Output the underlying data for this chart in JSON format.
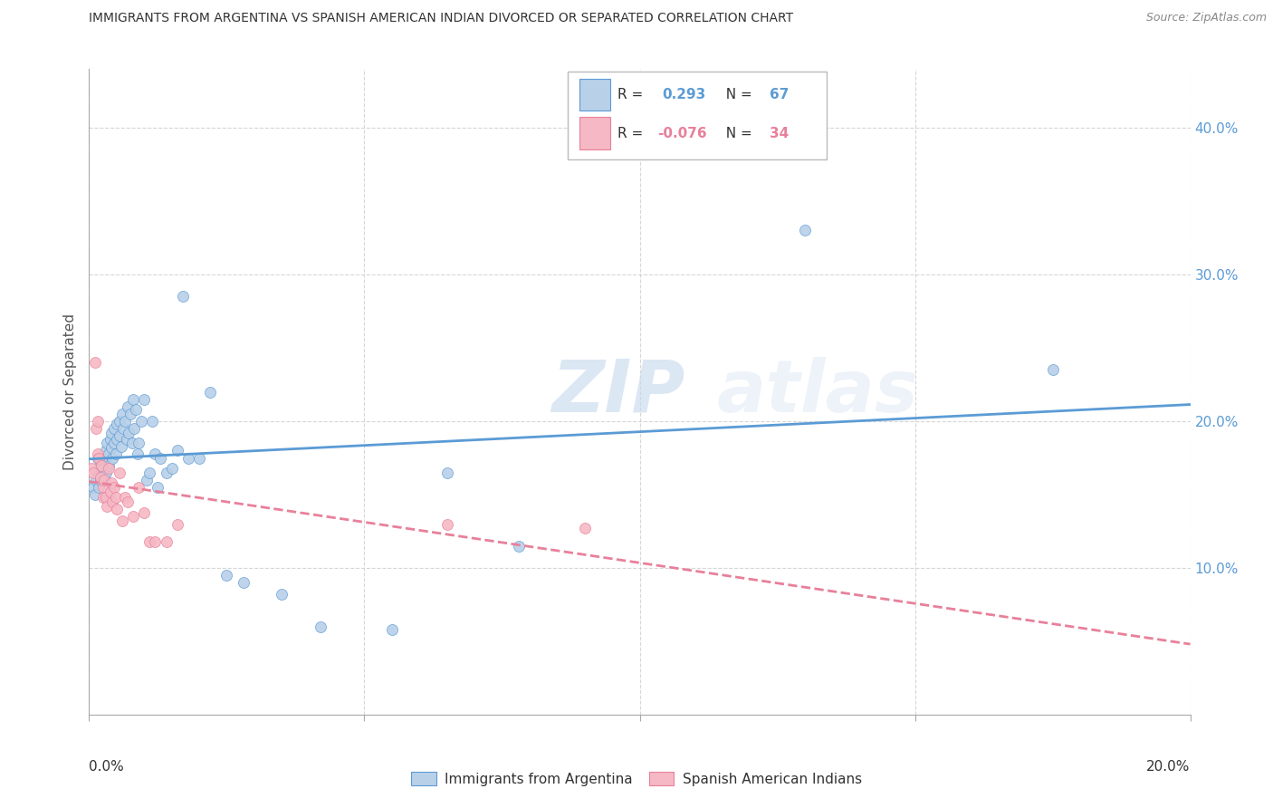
{
  "title": "IMMIGRANTS FROM ARGENTINA VS SPANISH AMERICAN INDIAN DIVORCED OR SEPARATED CORRELATION CHART",
  "source": "Source: ZipAtlas.com",
  "ylabel": "Divorced or Separated",
  "legend1_R": "0.293",
  "legend1_N": "67",
  "legend2_R": "-0.076",
  "legend2_N": "34",
  "legend1_label": "Immigrants from Argentina",
  "legend2_label": "Spanish American Indians",
  "blue_color": "#b8d0e8",
  "pink_color": "#f5b8c4",
  "blue_line_color": "#5b9bd5",
  "pink_line_color": "#e8809a",
  "watermark_zip": "ZIP",
  "watermark_atlas": "atlas",
  "blue_scatter_x": [
    0.0008,
    0.001,
    0.0012,
    0.0015,
    0.0015,
    0.0018,
    0.002,
    0.002,
    0.0022,
    0.0025,
    0.0025,
    0.0028,
    0.003,
    0.003,
    0.003,
    0.0033,
    0.0035,
    0.0035,
    0.0038,
    0.004,
    0.004,
    0.0042,
    0.0045,
    0.0045,
    0.0048,
    0.005,
    0.005,
    0.0055,
    0.0055,
    0.0058,
    0.006,
    0.0062,
    0.0065,
    0.0068,
    0.007,
    0.0072,
    0.0075,
    0.0078,
    0.008,
    0.0082,
    0.0085,
    0.0088,
    0.009,
    0.0095,
    0.01,
    0.0105,
    0.011,
    0.0115,
    0.012,
    0.0125,
    0.013,
    0.014,
    0.015,
    0.016,
    0.017,
    0.018,
    0.02,
    0.022,
    0.025,
    0.028,
    0.035,
    0.042,
    0.055,
    0.065,
    0.078,
    0.13,
    0.175
  ],
  "blue_scatter_y": [
    0.155,
    0.15,
    0.16,
    0.175,
    0.165,
    0.155,
    0.17,
    0.16,
    0.165,
    0.175,
    0.168,
    0.162,
    0.18,
    0.172,
    0.165,
    0.185,
    0.178,
    0.17,
    0.188,
    0.192,
    0.182,
    0.175,
    0.195,
    0.185,
    0.178,
    0.198,
    0.188,
    0.2,
    0.19,
    0.183,
    0.205,
    0.195,
    0.2,
    0.188,
    0.21,
    0.192,
    0.205,
    0.185,
    0.215,
    0.195,
    0.208,
    0.178,
    0.185,
    0.2,
    0.215,
    0.16,
    0.165,
    0.2,
    0.178,
    0.155,
    0.175,
    0.165,
    0.168,
    0.18,
    0.285,
    0.175,
    0.175,
    0.22,
    0.095,
    0.09,
    0.082,
    0.06,
    0.058,
    0.165,
    0.115,
    0.33,
    0.235
  ],
  "pink_scatter_x": [
    0.0005,
    0.0008,
    0.001,
    0.0012,
    0.0015,
    0.0015,
    0.0018,
    0.002,
    0.0022,
    0.0025,
    0.0025,
    0.0028,
    0.003,
    0.0032,
    0.0035,
    0.0038,
    0.004,
    0.0042,
    0.0045,
    0.0048,
    0.005,
    0.0055,
    0.006,
    0.0065,
    0.007,
    0.008,
    0.009,
    0.01,
    0.011,
    0.012,
    0.014,
    0.016,
    0.065,
    0.09
  ],
  "pink_scatter_y": [
    0.168,
    0.165,
    0.24,
    0.195,
    0.2,
    0.178,
    0.175,
    0.162,
    0.17,
    0.155,
    0.148,
    0.16,
    0.148,
    0.142,
    0.168,
    0.152,
    0.158,
    0.145,
    0.155,
    0.148,
    0.14,
    0.165,
    0.132,
    0.148,
    0.145,
    0.135,
    0.155,
    0.138,
    0.118,
    0.118,
    0.118,
    0.13,
    0.13,
    0.127
  ],
  "xlim": [
    0.0,
    0.2
  ],
  "ylim": [
    0.0,
    0.44
  ],
  "xticks": [
    0.0,
    0.05,
    0.1,
    0.15,
    0.2
  ],
  "yticks_right": [
    0.1,
    0.2,
    0.3,
    0.4
  ],
  "ytick_labels": [
    "10.0%",
    "20.0%",
    "30.0%",
    "40.0%"
  ]
}
